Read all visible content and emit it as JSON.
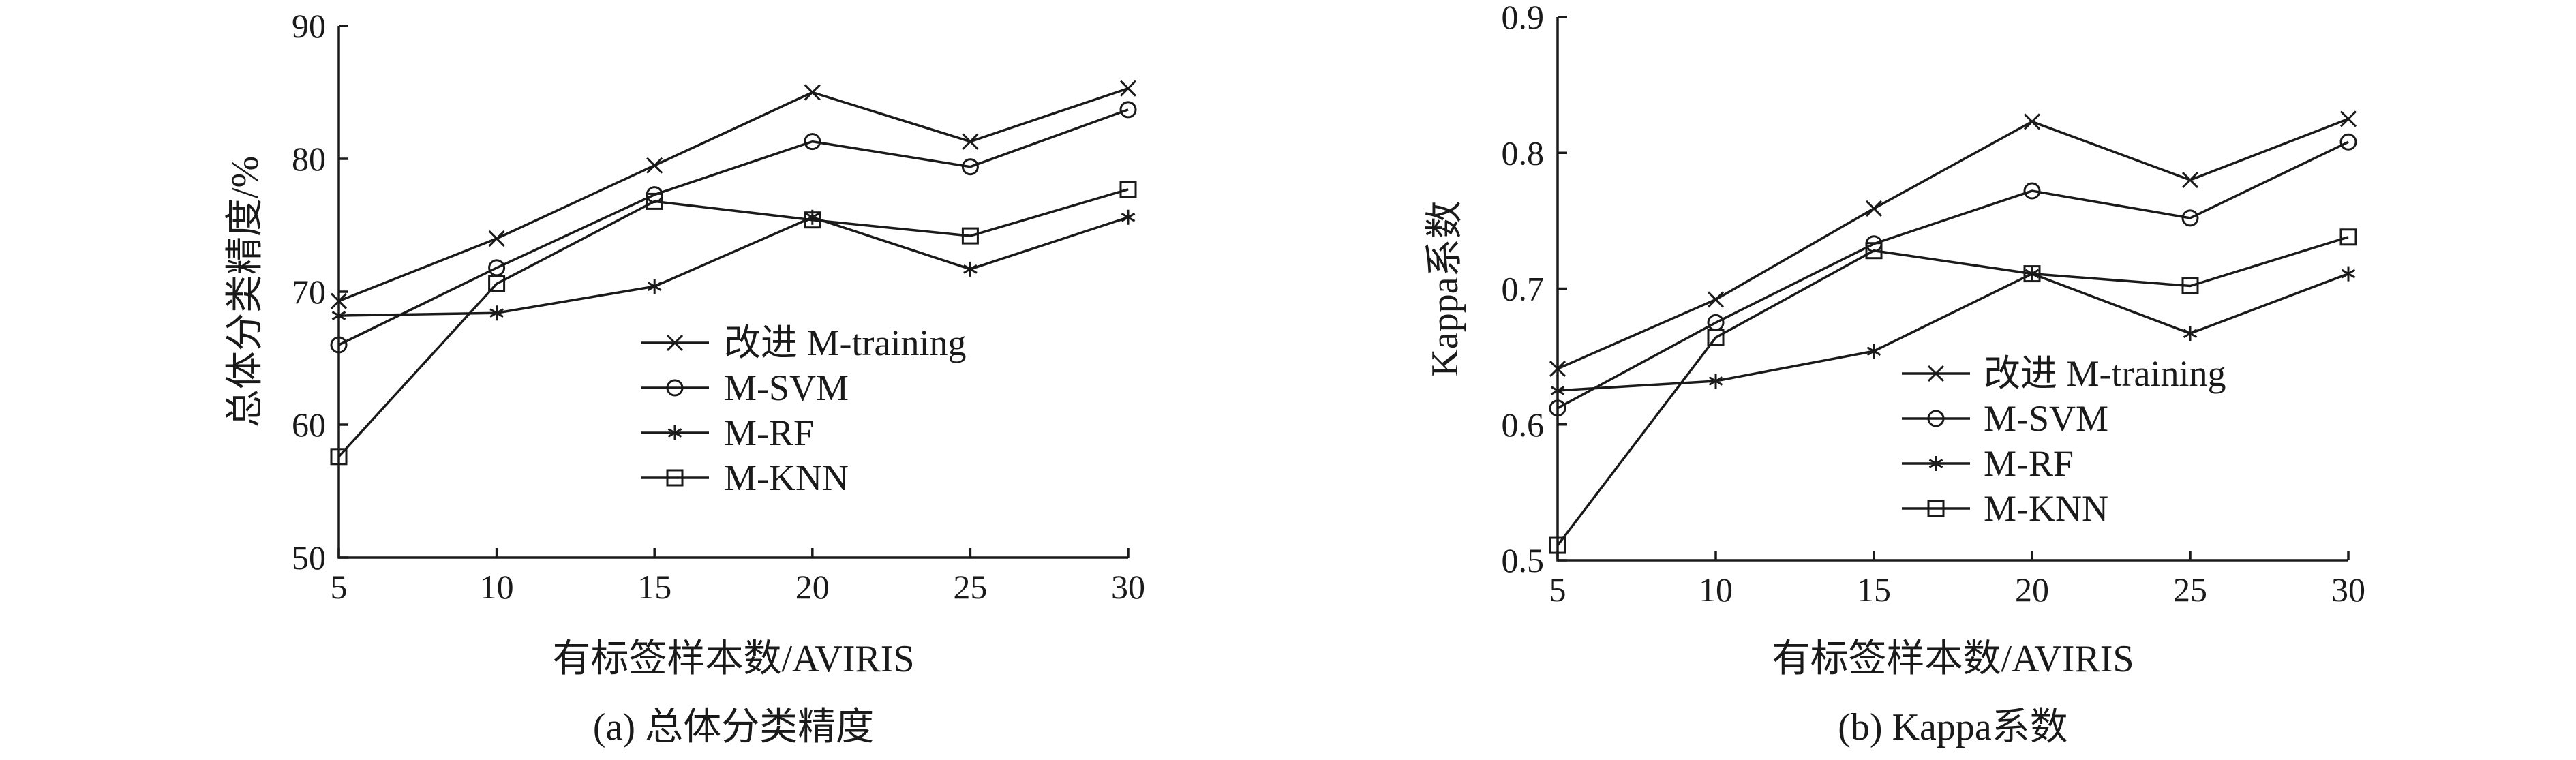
{
  "chart_data": [
    {
      "type": "line",
      "title": "(a) 总体分类精度",
      "xlabel": "有标签样本数/AVIRIS",
      "ylabel": "总体分类精度/%",
      "x": [
        5,
        10,
        15,
        20,
        25,
        30
      ],
      "xlim": [
        5,
        30
      ],
      "ylim": [
        50,
        90
      ],
      "xticks": [
        "5",
        "10",
        "15",
        "20",
        "25",
        "30"
      ],
      "yticks": [
        "50",
        "60",
        "70",
        "80",
        "90"
      ],
      "grid": false,
      "legend_position": "center-right",
      "series": [
        {
          "name": "改进 M-training",
          "marker": "x",
          "values": [
            69.3,
            74.0,
            79.5,
            85.0,
            81.3,
            85.3
          ]
        },
        {
          "name": "M-SVM",
          "marker": "circle",
          "values": [
            66.0,
            71.8,
            77.3,
            81.3,
            79.4,
            83.7
          ]
        },
        {
          "name": "M-RF",
          "marker": "asterisk",
          "values": [
            68.2,
            68.4,
            70.4,
            75.6,
            71.7,
            75.6
          ]
        },
        {
          "name": "M-KNN",
          "marker": "square",
          "values": [
            57.6,
            70.6,
            76.8,
            75.4,
            74.2,
            77.7
          ]
        }
      ]
    },
    {
      "type": "line",
      "title": "(b) Kappa系数",
      "xlabel": "有标签样本数/AVIRIS",
      "ylabel": "Kappa系数",
      "x": [
        5,
        10,
        15,
        20,
        25,
        30
      ],
      "xlim": [
        5,
        30
      ],
      "ylim": [
        0.5,
        0.9
      ],
      "xticks": [
        "5",
        "10",
        "15",
        "20",
        "25",
        "30"
      ],
      "yticks": [
        "0.5",
        "0.6",
        "0.7",
        "0.8",
        "0.9"
      ],
      "grid": false,
      "legend_position": "center-right",
      "series": [
        {
          "name": "改进 M-training",
          "marker": "x",
          "values": [
            0.641,
            0.692,
            0.759,
            0.823,
            0.78,
            0.825
          ]
        },
        {
          "name": "M-SVM",
          "marker": "circle",
          "values": [
            0.612,
            0.675,
            0.733,
            0.772,
            0.752,
            0.808
          ]
        },
        {
          "name": "M-RF",
          "marker": "asterisk",
          "values": [
            0.625,
            0.632,
            0.654,
            0.711,
            0.667,
            0.711
          ]
        },
        {
          "name": "M-KNN",
          "marker": "square",
          "values": [
            0.511,
            0.664,
            0.728,
            0.711,
            0.702,
            0.738
          ]
        }
      ]
    }
  ]
}
